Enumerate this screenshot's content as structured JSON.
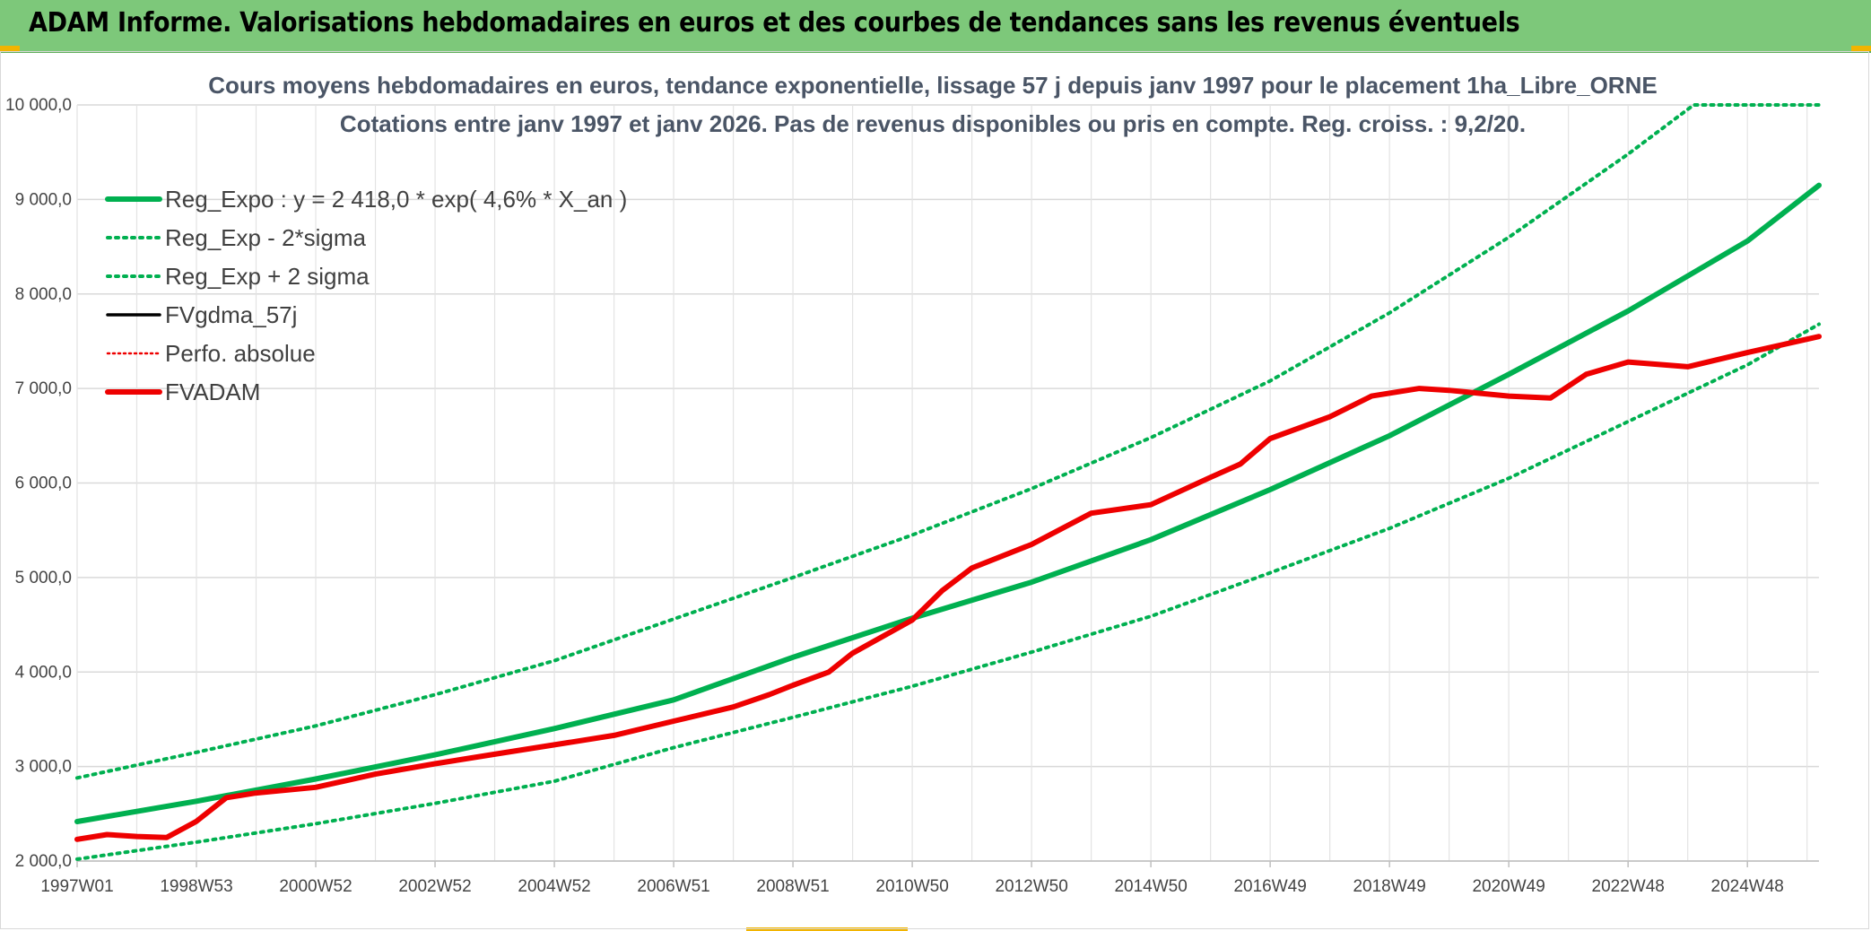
{
  "header": {
    "title": "ADAM Informe. Valorisations hebdomadaires en euros et des courbes de tendances sans les revenus éventuels"
  },
  "colors": {
    "header_bg": "#7dc87a",
    "trend": "#00b050",
    "fvadam": "#ee0000",
    "fvgdma": "#000000",
    "perfo": "#ee0000"
  },
  "chart_data": {
    "type": "line",
    "title": "Cours moyens hebdomadaires en euros, tendance exponentielle, lissage 57 j depuis janv 1997 pour le placement 1ha_Libre_ORNE",
    "subtitle": "Cotations entre janv 1997 et janv 2026. Pas de revenus disponibles ou pris en compte. Reg. croiss. : 9,2/20.",
    "xlabel": "",
    "ylabel": "",
    "xlim": [
      1997.0,
      2026.2
    ],
    "ylim": [
      2000,
      10000
    ],
    "y_ticks": [
      "2 000,0",
      "3 000,0",
      "4 000,0",
      "5 000,0",
      "6 000,0",
      "7 000,0",
      "8 000,0",
      "9 000,0",
      "10 000,0"
    ],
    "x_ticks": [
      {
        "label": "1997W01",
        "x": 1997.0
      },
      {
        "label": "1998W53",
        "x": 1999.0
      },
      {
        "label": "2000W52",
        "x": 2001.0
      },
      {
        "label": "2002W52",
        "x": 2003.0
      },
      {
        "label": "2004W52",
        "x": 2005.0
      },
      {
        "label": "2006W51",
        "x": 2007.0
      },
      {
        "label": "2008W51",
        "x": 2009.0
      },
      {
        "label": "2010W50",
        "x": 2011.0
      },
      {
        "label": "2012W50",
        "x": 2013.0
      },
      {
        "label": "2014W50",
        "x": 2015.0
      },
      {
        "label": "2016W49",
        "x": 2017.0
      },
      {
        "label": "2018W49",
        "x": 2019.0
      },
      {
        "label": "2020W49",
        "x": 2021.0
      },
      {
        "label": "2022W48",
        "x": 2023.0
      },
      {
        "label": "2024W48",
        "x": 2025.0
      }
    ],
    "grid": true,
    "legend_position": "top-left",
    "series": [
      {
        "name": "Reg_Expo : y = 2 418,0 * exp( 4,6% *  X_an )",
        "style": "solid-thick",
        "color": "#00b050",
        "x": [
          1997,
          1999,
          2001,
          2003,
          2005,
          2007,
          2009,
          2011,
          2013,
          2015,
          2017,
          2019,
          2021,
          2023,
          2025,
          2026.2
        ],
        "values": [
          2418,
          2633,
          2868,
          3124,
          3402,
          3705,
          4156,
          4570,
          4950,
          5400,
          5930,
          6500,
          7150,
          7820,
          8560,
          9150
        ]
      },
      {
        "name": "Reg_Exp - 2*sigma",
        "style": "dotted",
        "color": "#00b050",
        "x": [
          1997,
          1999,
          2001,
          2003,
          2005,
          2007,
          2009,
          2011,
          2013,
          2015,
          2017,
          2019,
          2021,
          2023,
          2025,
          2026.2
        ],
        "values": [
          2020,
          2200,
          2395,
          2610,
          2845,
          3200,
          3520,
          3850,
          4210,
          4590,
          5050,
          5520,
          6050,
          6650,
          7250,
          7680
        ]
      },
      {
        "name": "Reg_Exp + 2 sigma",
        "style": "dotted",
        "color": "#00b050",
        "x": [
          1997,
          1999,
          2001,
          2003,
          2005,
          2007,
          2009,
          2011,
          2013,
          2015,
          2017,
          2019,
          2021,
          2023,
          2024.1,
          2025,
          2026.2
        ],
        "values": [
          2880,
          3150,
          3430,
          3760,
          4120,
          4560,
          5000,
          5450,
          5940,
          6480,
          7080,
          7800,
          8600,
          9480,
          10000,
          10000,
          10000
        ]
      },
      {
        "name": "FVgdma_57j",
        "style": "solid",
        "color": "#000000",
        "x": [],
        "values": []
      },
      {
        "name": "Perfo. absolue",
        "style": "dotted-thin",
        "color": "#ee0000",
        "x": [],
        "values": []
      },
      {
        "name": "FVADAM",
        "style": "solid-thick",
        "color": "#ee0000",
        "x": [
          1997,
          1997.5,
          1998,
          1998.5,
          1999,
          1999.5,
          2000,
          2001,
          2002,
          2003,
          2004,
          2005,
          2006,
          2007,
          2008,
          2008.6,
          2009,
          2009.6,
          2010,
          2011,
          2011.5,
          2012,
          2013,
          2014,
          2015,
          2016,
          2016.5,
          2017,
          2018,
          2018.7,
          2019.5,
          2020,
          2021,
          2021.7,
          2022.3,
          2023,
          2024,
          2025,
          2026.2
        ],
        "values": [
          2230,
          2280,
          2260,
          2250,
          2420,
          2670,
          2720,
          2780,
          2920,
          3030,
          3130,
          3230,
          3330,
          3480,
          3630,
          3760,
          3860,
          4000,
          4200,
          4550,
          4860,
          5100,
          5350,
          5680,
          5770,
          6060,
          6200,
          6470,
          6700,
          6920,
          7000,
          6980,
          6920,
          6900,
          7150,
          7280,
          7230,
          7380,
          7550
        ]
      }
    ]
  }
}
